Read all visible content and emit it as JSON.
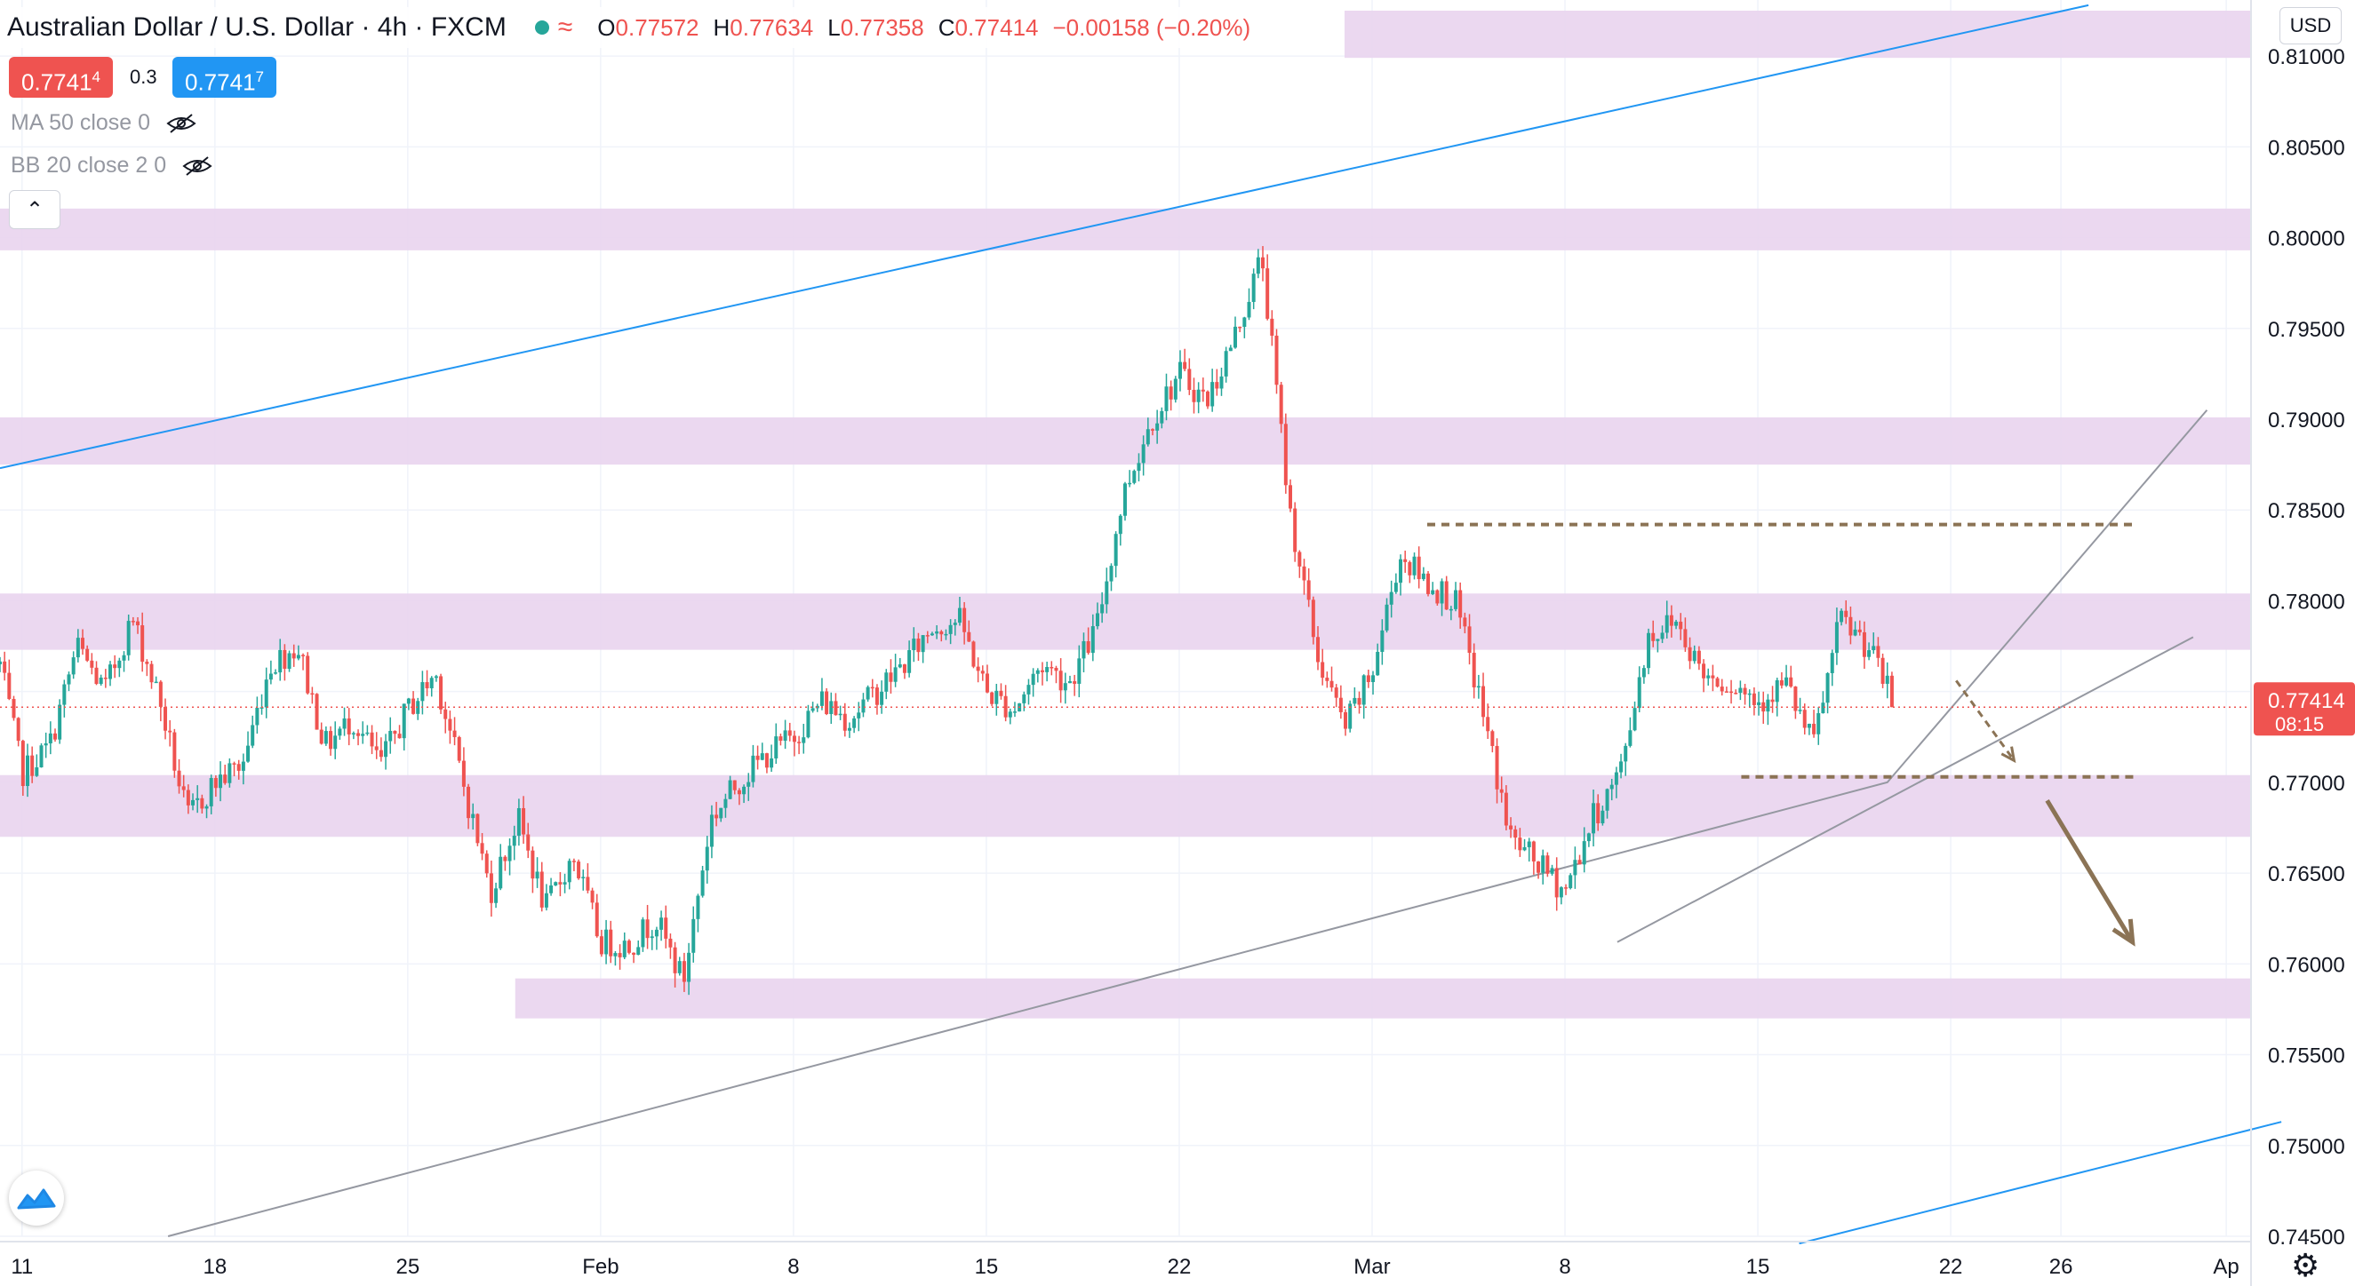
{
  "header": {
    "title": "Australian Dollar / U.S. Dollar · 4h · FXCM",
    "open_label": "O",
    "open": "0.77572",
    "high_label": "H",
    "high": "0.77634",
    "low_label": "L",
    "low": "0.77358",
    "close_label": "C",
    "close": "0.77414",
    "change": "−0.00158 (−0.20%)"
  },
  "trade": {
    "sell_main": "0.7741",
    "sell_sup": "4",
    "spread": "0.3",
    "buy_main": "0.7741",
    "buy_sup": "7"
  },
  "indicators": [
    {
      "label": "MA 50 close 0",
      "icon": "eye-off-icon"
    },
    {
      "label": "BB 20 close 2 0",
      "icon": "eye-off-icon"
    }
  ],
  "collapse_glyph": "⌃",
  "currency": "USD",
  "settings_glyph": "⚙",
  "colors": {
    "up": "#26a69a",
    "down": "#ef5350",
    "zone": "#e9d4ee",
    "trend_line": "#9598a1",
    "channel_line": "#2196f3",
    "projection": "#8b7355",
    "last_price": "#ef5350"
  },
  "chart_data": {
    "type": "candlestick",
    "symbol": "Australian Dollar / U.S. Dollar",
    "timeframe": "4h",
    "ylim": [
      0.745,
      0.8125
    ],
    "y_ticks": [
      "0.81000",
      "0.80500",
      "0.80000",
      "0.79500",
      "0.79000",
      "0.78500",
      "0.78000",
      "0.77500",
      "0.77000",
      "0.76500",
      "0.76000",
      "0.75500",
      "0.75000",
      "0.74500"
    ],
    "x_ticks": [
      {
        "label": "11",
        "day": 0
      },
      {
        "label": "18",
        "day": 7
      },
      {
        "label": "25",
        "day": 14
      },
      {
        "label": "Feb",
        "day": 21
      },
      {
        "label": "8",
        "day": 28
      },
      {
        "label": "15",
        "day": 35
      },
      {
        "label": "22",
        "day": 42
      },
      {
        "label": "Mar",
        "day": 49
      },
      {
        "label": "8",
        "day": 56
      },
      {
        "label": "15",
        "day": 63
      },
      {
        "label": "22",
        "day": 70
      },
      {
        "label": "26",
        "day": 74
      },
      {
        "label": "Ap",
        "day": 80
      }
    ],
    "x_range_days": [
      -0.8,
      80.9
    ],
    "last_price": {
      "value": 0.77414,
      "label": "0.77414",
      "countdown": "08:15"
    },
    "path_days": [
      -0.8,
      0,
      1,
      2,
      3,
      4,
      5,
      6,
      7,
      8,
      9,
      10,
      11,
      12,
      13,
      14,
      15,
      16,
      17,
      18,
      19,
      20,
      21,
      22,
      23,
      24,
      25,
      26,
      27,
      28,
      29,
      30,
      31,
      32,
      33,
      34,
      35,
      36,
      37,
      38,
      39,
      40,
      41,
      42,
      43,
      44,
      45,
      46,
      47,
      48,
      49,
      50,
      51,
      52,
      53,
      54,
      55,
      56,
      57,
      58,
      59,
      60,
      61,
      62,
      63,
      64,
      65,
      66,
      67,
      68
    ],
    "path_closes": [
      0.7765,
      0.7705,
      0.772,
      0.7775,
      0.775,
      0.779,
      0.7745,
      0.768,
      0.77,
      0.771,
      0.7765,
      0.7775,
      0.772,
      0.7735,
      0.771,
      0.774,
      0.776,
      0.77,
      0.764,
      0.768,
      0.763,
      0.766,
      0.7612,
      0.761,
      0.7625,
      0.759,
      0.768,
      0.77,
      0.7715,
      0.7725,
      0.7745,
      0.7735,
      0.775,
      0.7765,
      0.7785,
      0.779,
      0.775,
      0.774,
      0.7765,
      0.7755,
      0.7785,
      0.786,
      0.79,
      0.7925,
      0.791,
      0.7945,
      0.799,
      0.785,
      0.777,
      0.773,
      0.776,
      0.7825,
      0.781,
      0.78,
      0.774,
      0.767,
      0.7655,
      0.764,
      0.768,
      0.7705,
      0.778,
      0.779,
      0.776,
      0.7755,
      0.7745,
      0.7755,
      0.772,
      0.779,
      0.7775,
      0.7741
    ],
    "zones": [
      {
        "from": 0.8125,
        "to": 0.8099,
        "start_day": 48.0
      },
      {
        "from": 0.8016,
        "to": 0.7993,
        "start_day": -0.8
      },
      {
        "from": 0.7901,
        "to": 0.7875,
        "start_day": -0.8
      },
      {
        "from": 0.7804,
        "to": 0.7773,
        "start_day": -0.8
      },
      {
        "from": 0.7704,
        "to": 0.767,
        "start_day": -0.8
      },
      {
        "from": 0.7592,
        "to": 0.757,
        "start_day": 17.9
      }
    ],
    "trend_lines": [
      {
        "role": "support",
        "points": [
          [
            5.3,
            0.745
          ],
          [
            67.7,
            0.77
          ],
          [
            79.3,
            0.7905
          ]
        ]
      },
      {
        "role": "channel",
        "points": [
          [
            57.9,
            0.7612
          ],
          [
            78.8,
            0.778
          ]
        ]
      }
    ],
    "channel_lines": [
      {
        "points": [
          [
            -0.8,
            0.7873
          ],
          [
            75.0,
            0.8128
          ]
        ]
      },
      {
        "points": [
          [
            64.5,
            0.7446
          ],
          [
            82.0,
            0.7513
          ]
        ]
      }
    ],
    "levels": [
      {
        "value": 0.7842,
        "from_day": 51.0,
        "to_day": 76.6
      },
      {
        "value": 0.7703,
        "from_day": 62.4,
        "to_day": 76.7
      }
    ],
    "arrows": [
      {
        "style": "dashed",
        "from": [
          70.2,
          0.7756
        ],
        "to": [
          72.3,
          0.7712
        ]
      },
      {
        "style": "solid",
        "from": [
          73.5,
          0.769
        ],
        "to": [
          76.6,
          0.7612
        ]
      }
    ]
  }
}
